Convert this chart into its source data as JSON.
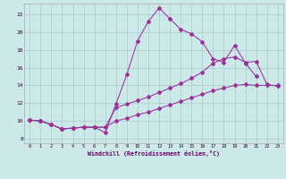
{
  "background_color": "#cce8e8",
  "grid_color": "#aacccc",
  "line_color": "#993399",
  "xlim": [
    -0.5,
    23.5
  ],
  "ylim": [
    7.5,
    23.2
  ],
  "xtick_vals": [
    0,
    1,
    2,
    3,
    4,
    5,
    6,
    7,
    8,
    9,
    10,
    11,
    12,
    13,
    14,
    15,
    16,
    17,
    18,
    19,
    20,
    21,
    22,
    23
  ],
  "ytick_vals": [
    8,
    10,
    12,
    14,
    16,
    18,
    20,
    22
  ],
  "line1_x": [
    0,
    1,
    2,
    3,
    4,
    5,
    6,
    7,
    8,
    9,
    10,
    11,
    12,
    13,
    14,
    15,
    16,
    17,
    18,
    19,
    20,
    21
  ],
  "line1_y": [
    10.1,
    10.0,
    9.6,
    9.1,
    9.2,
    9.3,
    9.3,
    8.7,
    11.9,
    15.2,
    19.0,
    21.2,
    22.7,
    21.5,
    20.3,
    19.8,
    18.9,
    17.0,
    16.6,
    18.5,
    16.5,
    15.0
  ],
  "line2_x": [
    0,
    1,
    2,
    3,
    4,
    5,
    6,
    7,
    8,
    9,
    10,
    11,
    12,
    13,
    14,
    15,
    16,
    17,
    18,
    19,
    20,
    21,
    22,
    23
  ],
  "line2_y": [
    10.1,
    10.0,
    9.6,
    9.1,
    9.2,
    9.3,
    9.3,
    9.3,
    11.5,
    11.9,
    12.3,
    12.7,
    13.2,
    13.7,
    14.2,
    14.8,
    15.5,
    16.5,
    17.0,
    17.2,
    16.6,
    16.7,
    14.1,
    13.9
  ],
  "line3_x": [
    0,
    1,
    2,
    3,
    4,
    5,
    6,
    7,
    8,
    9,
    10,
    11,
    12,
    13,
    14,
    15,
    16,
    17,
    18,
    19,
    20,
    21,
    22,
    23
  ],
  "line3_y": [
    10.1,
    10.0,
    9.6,
    9.1,
    9.2,
    9.3,
    9.3,
    9.3,
    10.0,
    10.3,
    10.7,
    11.0,
    11.4,
    11.8,
    12.2,
    12.6,
    13.0,
    13.4,
    13.7,
    14.0,
    14.1,
    14.0,
    14.0,
    14.0
  ],
  "xlabel": "Windchill (Refroidissement éolien,°C)",
  "xlabel_color": "#660066",
  "tick_color": "#330033"
}
